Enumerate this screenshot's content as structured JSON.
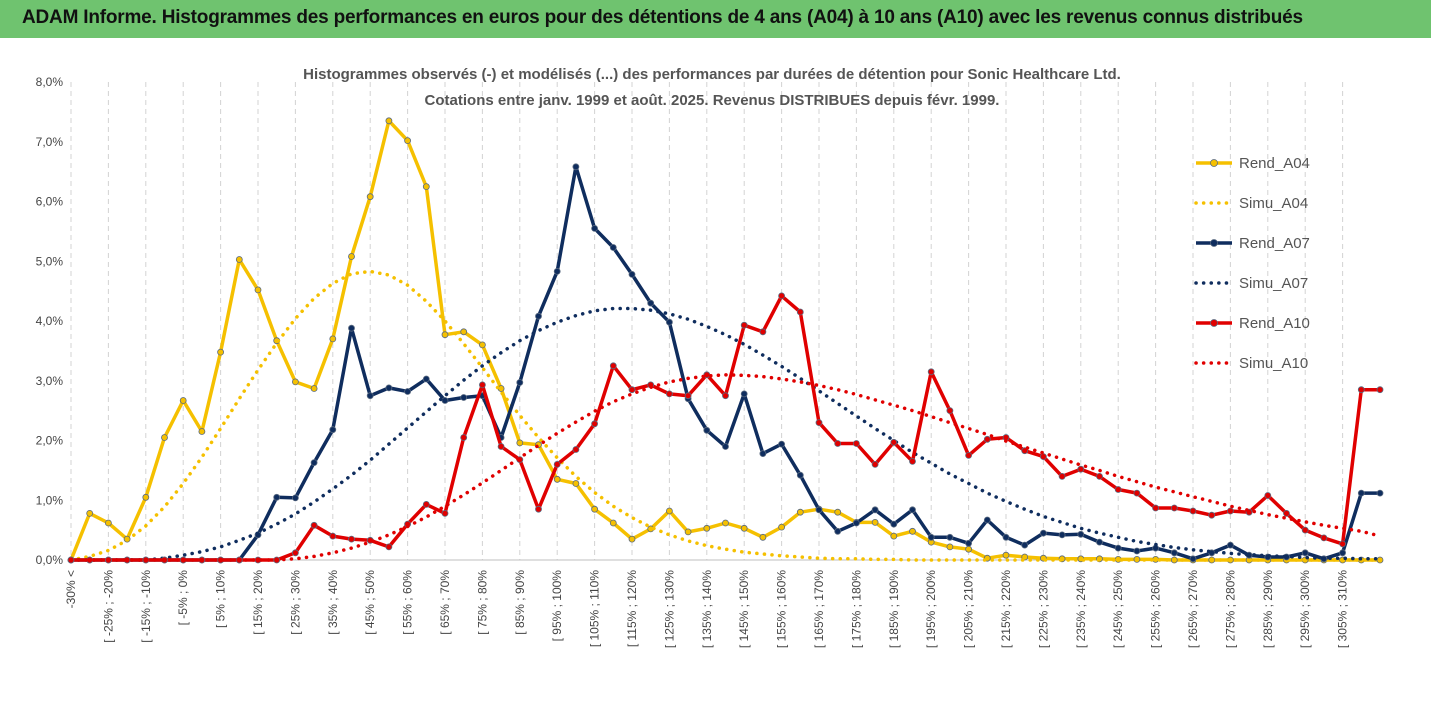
{
  "header": {
    "title": "ADAM Informe. Histogrammes des performances en euros pour des détentions de 4 ans (A04) à 10 ans (A10) avec les revenus connus distribués"
  },
  "chart_data": {
    "type": "line",
    "title": "Histogrammes observés (-) et modélisés (...) des performances par durées de détention pour Sonic Healthcare Ltd.",
    "subtitle": "Cotations entre janv. 1999 et août. 2025. Revenus DISTRIBUES depuis févr. 1999.",
    "xlabel": "",
    "ylabel": "",
    "ylim": [
      0,
      8
    ],
    "yticks": [
      "0,0%",
      "1,0%",
      "2,0%",
      "3,0%",
      "4,0%",
      "5,0%",
      "6,0%",
      "7,0%",
      "8,0%"
    ],
    "xtick_labels": [
      "-30% <",
      "[ -25% ; -20%",
      "[ -15% ; -10%",
      "[ -5% ; 0%",
      "[ 5% ; 10%",
      "[ 15% ; 20%",
      "[ 25% ; 30%",
      "[ 35% ; 40%",
      "[ 45% ; 50%",
      "[ 55% ; 60%",
      "[ 65% ; 70%",
      "[ 75% ; 80%",
      "[ 85% ; 90%",
      "[ 95% ; 100%",
      "[ 105% ; 110%",
      "[ 115% ; 120%",
      "[ 125% ; 130%",
      "[ 135% ; 140%",
      "[ 145% ; 150%",
      "[ 155% ; 160%",
      "[ 165% ; 170%",
      "[ 175% ; 180%",
      "[ 185% ; 190%",
      "[ 195% ; 200%",
      "[ 205% ; 210%",
      "[ 215% ; 220%",
      "[ 225% ; 230%",
      "[ 235% ; 240%",
      "[ 245% ; 250%",
      "[ 255% ; 260%",
      "[ 265% ; 270%",
      "[ 275% ; 280%",
      "[ 285% ; 290%",
      "[ 295% ; 300%",
      "[ 305% ; 310%"
    ],
    "grid": true,
    "legend_position": "right",
    "n_bins": 71,
    "series": [
      {
        "name": "Rend_A04",
        "style": "solid",
        "color": "#f5c000",
        "values": [
          0,
          0.78,
          0.62,
          0.35,
          1.05,
          2.05,
          2.67,
          2.15,
          3.48,
          5.03,
          4.52,
          3.67,
          2.98,
          2.87,
          3.7,
          5.08,
          6.08,
          7.35,
          7.02,
          6.25,
          3.77,
          3.82,
          3.6,
          2.87,
          1.96,
          1.93,
          1.35,
          1.28,
          0.85,
          0.62,
          0.35,
          0.52,
          0.82,
          0.47,
          0.53,
          0.62,
          0.53,
          0.38,
          0.55,
          0.8,
          0.85,
          0.8,
          0.63,
          0.63,
          0.4,
          0.48,
          0.3,
          0.22,
          0.18,
          0.03,
          0.08,
          0.05,
          0.03,
          0.02,
          0.02,
          0.02,
          0.01,
          0.01,
          0.01,
          0,
          0,
          0,
          0,
          0,
          0,
          0,
          0,
          0,
          0,
          0,
          0
        ]
      },
      {
        "name": "Simu_A04",
        "style": "dotted",
        "color": "#f5c000",
        "values": [
          0.0,
          0.06,
          0.16,
          0.33,
          0.57,
          0.89,
          1.28,
          1.72,
          2.2,
          2.7,
          3.18,
          3.63,
          4.04,
          4.38,
          4.63,
          4.79,
          4.83,
          4.77,
          4.6,
          4.33,
          4.0,
          3.62,
          3.22,
          2.81,
          2.42,
          2.05,
          1.71,
          1.4,
          1.13,
          0.9,
          0.71,
          0.55,
          0.42,
          0.32,
          0.24,
          0.18,
          0.13,
          0.1,
          0.07,
          0.05,
          0.03,
          0.02,
          0.02,
          0.01,
          0.01,
          0,
          0,
          0,
          0,
          0,
          0,
          0,
          0,
          0,
          0,
          0,
          0,
          0,
          0,
          0,
          0,
          0,
          0,
          0,
          0,
          0,
          0,
          0,
          0,
          0,
          0
        ]
      },
      {
        "name": "Rend_A07",
        "style": "solid",
        "color": "#0f2d5e",
        "values": [
          0,
          0,
          0,
          0,
          0,
          0,
          0,
          0,
          0,
          0,
          0.42,
          1.05,
          1.04,
          1.63,
          2.18,
          3.88,
          2.75,
          2.88,
          2.82,
          3.03,
          2.67,
          2.72,
          2.75,
          2.05,
          2.97,
          4.08,
          4.83,
          6.58,
          5.55,
          5.23,
          4.78,
          4.3,
          3.98,
          2.7,
          2.17,
          1.9,
          2.78,
          1.78,
          1.94,
          1.42,
          0.84,
          0.48,
          0.62,
          0.84,
          0.6,
          0.84,
          0.38,
          0.38,
          0.28,
          0.67,
          0.38,
          0.25,
          0.45,
          0.42,
          0.43,
          0.3,
          0.2,
          0.15,
          0.2,
          0.12,
          0.02,
          0.12,
          0.25,
          0.08,
          0.05,
          0.05,
          0.12,
          0.02,
          0.12,
          1.12,
          1.12
        ]
      },
      {
        "name": "Simu_A07",
        "style": "dotted",
        "color": "#0f2d5e",
        "values": [
          0,
          0,
          0,
          0,
          0,
          0.03,
          0.08,
          0.14,
          0.22,
          0.33,
          0.45,
          0.6,
          0.77,
          0.97,
          1.19,
          1.42,
          1.67,
          1.94,
          2.21,
          2.48,
          2.75,
          3.01,
          3.25,
          3.47,
          3.67,
          3.84,
          3.98,
          4.09,
          4.17,
          4.21,
          4.21,
          4.18,
          4.12,
          4.03,
          3.91,
          3.77,
          3.61,
          3.43,
          3.24,
          3.04,
          2.83,
          2.62,
          2.41,
          2.2,
          2.0,
          1.8,
          1.62,
          1.44,
          1.28,
          1.12,
          0.98,
          0.85,
          0.73,
          0.63,
          0.53,
          0.45,
          0.38,
          0.31,
          0.26,
          0.21,
          0.17,
          0.14,
          0.11,
          0.09,
          0.07,
          0.06,
          0.04,
          0.03,
          0.03,
          0.02,
          0.02
        ]
      },
      {
        "name": "Rend_A10",
        "style": "solid",
        "color": "#e00000",
        "values": [
          0,
          0,
          0,
          0,
          0,
          0,
          0,
          0,
          0,
          0,
          0,
          0,
          0.12,
          0.58,
          0.4,
          0.35,
          0.33,
          0.22,
          0.6,
          0.93,
          0.78,
          2.05,
          2.93,
          1.9,
          1.68,
          0.85,
          1.6,
          1.85,
          2.28,
          3.25,
          2.85,
          2.93,
          2.78,
          2.75,
          3.1,
          2.75,
          3.93,
          3.82,
          4.42,
          4.15,
          2.3,
          1.95,
          1.95,
          1.6,
          1.97,
          1.65,
          3.15,
          2.5,
          1.75,
          2.02,
          2.05,
          1.83,
          1.73,
          1.4,
          1.52,
          1.4,
          1.18,
          1.12,
          0.87,
          0.87,
          0.82,
          0.75,
          0.82,
          0.8,
          1.08,
          0.78,
          0.5,
          0.37,
          0.27,
          2.85,
          2.85
        ]
      },
      {
        "name": "Simu_A10",
        "style": "dotted",
        "color": "#e00000",
        "values": [
          0,
          0,
          0,
          0,
          0,
          0,
          0,
          0,
          0,
          0,
          0,
          0,
          0.02,
          0.06,
          0.12,
          0.2,
          0.3,
          0.42,
          0.56,
          0.72,
          0.9,
          1.09,
          1.29,
          1.5,
          1.71,
          1.92,
          2.12,
          2.31,
          2.49,
          2.65,
          2.78,
          2.89,
          2.98,
          3.04,
          3.08,
          3.1,
          3.09,
          3.07,
          3.03,
          2.98,
          2.92,
          2.85,
          2.77,
          2.68,
          2.59,
          2.5,
          2.4,
          2.3,
          2.2,
          2.1,
          1.99,
          1.89,
          1.79,
          1.69,
          1.59,
          1.5,
          1.4,
          1.31,
          1.22,
          1.14,
          1.06,
          0.98,
          0.9,
          0.83,
          0.76,
          0.7,
          0.64,
          0.58,
          0.53,
          0.48,
          0.4
        ]
      }
    ]
  }
}
